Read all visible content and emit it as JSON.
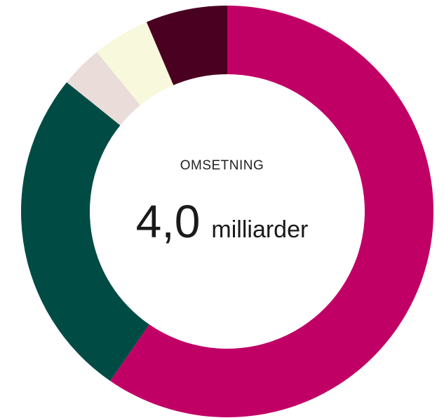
{
  "center": {
    "kicker": "OMSETNING",
    "value": "4,0",
    "unit": "milliarder"
  },
  "chart_data": {
    "type": "pie",
    "variant": "donut",
    "title": "",
    "legend": "none",
    "slices": [
      {
        "name": "",
        "value": 59.6,
        "color": "#c10066"
      },
      {
        "name": "",
        "value": 26.2,
        "color": "#004c45"
      },
      {
        "name": "",
        "value": 3.3,
        "color": "#e9dcd9"
      },
      {
        "name": "",
        "value": 4.5,
        "color": "#f8f8dd"
      },
      {
        "name": "",
        "value": 6.4,
        "color": "#4a0020"
      }
    ]
  }
}
